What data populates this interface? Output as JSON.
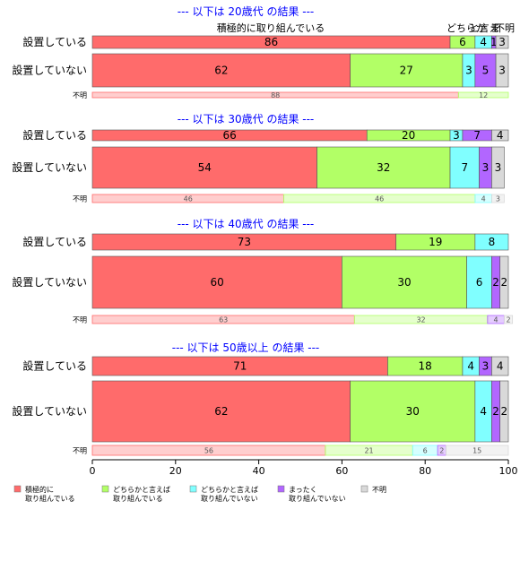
{
  "chart_data": {
    "type": "bar",
    "orientation": "horizontal-stacked-percent",
    "xlim": [
      0,
      100
    ],
    "xticks": [
      0,
      20,
      40,
      60,
      80,
      100
    ],
    "grid": false,
    "legend_position": "bottom",
    "categories": [
      {
        "key": "active",
        "label_lines": [
          "積極的に",
          "取り組んでいる"
        ],
        "color": "#ff6b6b"
      },
      {
        "key": "somewhat",
        "label_lines": [
          "どちらかと言えば",
          "取り組んでいる"
        ],
        "color": "#b2ff66"
      },
      {
        "key": "somewhat_not",
        "label_lines": [
          "どちらかと言えば",
          "取り組んでいない"
        ],
        "color": "#80ffff"
      },
      {
        "key": "not_at_all",
        "label_lines": [
          "まったく",
          "取り組んでいない"
        ],
        "color": "#b266ff"
      },
      {
        "key": "unknown",
        "label_lines": [
          "不明"
        ],
        "color": "#d9d9d9"
      }
    ],
    "panels": [
      {
        "title": "--- 以下は 20歳代 の結果 ---",
        "rows": [
          {
            "label": "設置している",
            "size": "thin",
            "values": [
              86,
              6,
              4,
              1,
              3
            ]
          },
          {
            "label": "設置していない",
            "size": "thick",
            "values": [
              62,
              27,
              3,
              5,
              3
            ]
          },
          {
            "label": "不明",
            "size": "tiny",
            "values": [
              88,
              12,
              0,
              0,
              0
            ]
          }
        ],
        "top_labels": [
          "積極的に取り組んでいる",
          "どちらか",
          "と言え",
          "ま",
          "不明"
        ]
      },
      {
        "title": "--- 以下は 30歳代 の結果 ---",
        "rows": [
          {
            "label": "設置している",
            "size": "thin",
            "values": [
              66,
              20,
              3,
              7,
              4
            ]
          },
          {
            "label": "設置していない",
            "size": "thick",
            "values": [
              54,
              32,
              7,
              3,
              3
            ]
          },
          {
            "label": "不明",
            "size": "tiny",
            "values": [
              46,
              46,
              4,
              0,
              3
            ]
          }
        ]
      },
      {
        "title": "--- 以下は 40歳代 の結果 ---",
        "rows": [
          {
            "label": "設置している",
            "size": "thin",
            "values": [
              73,
              19,
              8,
              0,
              0
            ]
          },
          {
            "label": "設置していない",
            "size": "thick",
            "values": [
              60,
              30,
              6,
              2,
              2
            ]
          },
          {
            "label": "不明",
            "size": "tiny",
            "values": [
              63,
              32,
              0,
              4,
              2
            ]
          }
        ]
      },
      {
        "title": "--- 以下は 50歳以上 の結果 ---",
        "rows": [
          {
            "label": "設置している",
            "size": "thin",
            "values": [
              71,
              18,
              4,
              3,
              4
            ]
          },
          {
            "label": "設置していない",
            "size": "thick",
            "values": [
              62,
              30,
              4,
              2,
              2
            ]
          },
          {
            "label": "不明",
            "size": "tiny",
            "values": [
              56,
              21,
              6,
              2,
              15
            ]
          }
        ]
      }
    ]
  }
}
